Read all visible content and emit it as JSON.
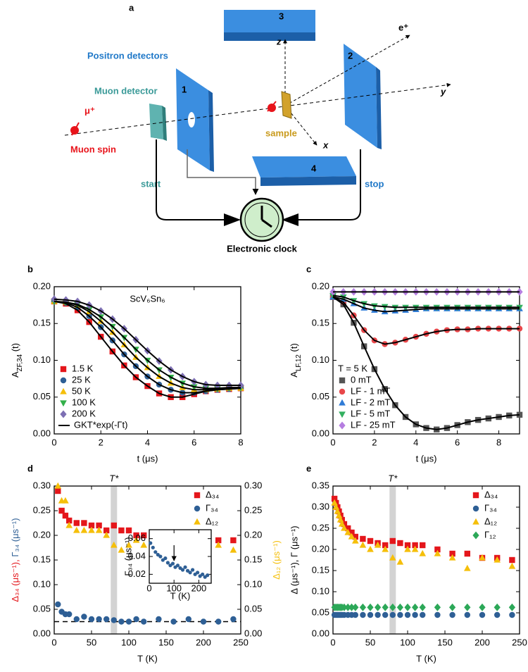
{
  "diagram": {
    "panel_label": "a",
    "positron_detectors": "Positron detectors",
    "muon_detector": "Muon detector",
    "muon": "μ⁺",
    "muon_spin": "Muon spin",
    "start": "start",
    "stop": "stop",
    "sample": "sample",
    "clock": "Electronic clock",
    "detector_numbers": [
      "1",
      "2",
      "3",
      "4"
    ],
    "axes": [
      "z",
      "x",
      "y"
    ],
    "positron": "e⁺"
  },
  "chart_data": [
    {
      "type": "scatter",
      "panel_label": "b",
      "annotation": "ScV₆Sn₆",
      "xlabel": "t (μs)",
      "ylabel": [
        "A",
        {
          "text": "ZF,34",
          "sub": true
        },
        " (t)"
      ],
      "xlim": [
        0,
        8
      ],
      "xticks": [
        0,
        2,
        4,
        6,
        8
      ],
      "ylim": [
        0,
        0.2
      ],
      "yticks": [
        {
          "value": 0,
          "label": "0.00"
        },
        {
          "value": 0.05,
          "label": "0.05"
        },
        {
          "value": 0.1,
          "label": "0.10"
        },
        {
          "value": 0.15,
          "label": "0.15"
        },
        {
          "value": 0.2,
          "label": "0.20"
        }
      ],
      "legend": "lower left",
      "fit_label": "GKT*exp(-Γt)",
      "fit_color": "#000000",
      "x": [
        0,
        0.5,
        1,
        1.5,
        2,
        2.5,
        3,
        3.5,
        4,
        4.5,
        5,
        5.5,
        6,
        6.5,
        7,
        7.5,
        8
      ],
      "series": [
        {
          "name": "1.5 K",
          "color": "#e4161b",
          "marker": "square",
          "values": [
            0.18,
            0.177,
            0.168,
            0.152,
            0.132,
            0.112,
            0.093,
            0.077,
            0.065,
            0.055,
            0.05,
            0.05,
            0.054,
            0.058,
            0.06,
            0.061,
            0.062
          ]
        },
        {
          "name": "25 K",
          "color": "#2e5f95",
          "marker": "circle",
          "values": [
            0.18,
            0.178,
            0.172,
            0.16,
            0.145,
            0.127,
            0.108,
            0.092,
            0.078,
            0.067,
            0.06,
            0.056,
            0.056,
            0.058,
            0.06,
            0.061,
            0.062
          ]
        },
        {
          "name": "50 K",
          "color": "#f5bf0a",
          "marker": "triangle-up",
          "values": [
            0.18,
            0.179,
            0.175,
            0.166,
            0.153,
            0.138,
            0.121,
            0.104,
            0.09,
            0.078,
            0.069,
            0.063,
            0.06,
            0.06,
            0.061,
            0.062,
            0.062
          ]
        },
        {
          "name": "100 K",
          "color": "#33b04a",
          "marker": "triangle-down",
          "values": [
            0.18,
            0.179,
            0.176,
            0.169,
            0.159,
            0.146,
            0.131,
            0.115,
            0.1,
            0.087,
            0.077,
            0.069,
            0.064,
            0.062,
            0.062,
            0.063,
            0.063
          ]
        },
        {
          "name": "200 K",
          "color": "#7d6fb3",
          "marker": "diamond",
          "values": [
            0.183,
            0.182,
            0.18,
            0.175,
            0.167,
            0.156,
            0.143,
            0.128,
            0.113,
            0.099,
            0.087,
            0.078,
            0.071,
            0.067,
            0.066,
            0.066,
            0.066
          ]
        }
      ]
    },
    {
      "type": "scatter",
      "panel_label": "c",
      "legend_title": "T = 5 K",
      "xlabel": "t (μs)",
      "ylabel": [
        "A",
        {
          "text": "LF,12",
          "sub": true
        },
        " (t)"
      ],
      "xlim": [
        0,
        9
      ],
      "xticks": [
        0,
        2,
        4,
        6,
        8
      ],
      "ylim": [
        0,
        0.2
      ],
      "yticks": [
        {
          "value": 0,
          "label": "0.00"
        },
        {
          "value": 0.05,
          "label": "0.05"
        },
        {
          "value": 0.1,
          "label": "0.10"
        },
        {
          "value": 0.15,
          "label": "0.15"
        },
        {
          "value": 0.2,
          "label": "0.20"
        }
      ],
      "legend": "lower left",
      "fit_color": "#000000",
      "x": [
        0,
        0.5,
        1,
        1.5,
        2,
        2.5,
        3,
        3.5,
        4,
        4.5,
        5,
        5.5,
        6,
        6.5,
        7,
        7.5,
        8,
        8.5,
        9
      ],
      "series": [
        {
          "name": "0 mT",
          "color": "#555555",
          "marker": "square",
          "values": [
            0.186,
            0.176,
            0.151,
            0.119,
            0.088,
            0.061,
            0.039,
            0.023,
            0.013,
            0.008,
            0.006,
            0.008,
            0.012,
            0.016,
            0.019,
            0.021,
            0.023,
            0.025,
            0.026
          ]
        },
        {
          "name": "LF - 1 mT",
          "color": "#e8474a",
          "marker": "circle",
          "values": [
            0.186,
            0.179,
            0.161,
            0.141,
            0.127,
            0.122,
            0.124,
            0.128,
            0.132,
            0.136,
            0.139,
            0.141,
            0.142,
            0.142,
            0.143,
            0.143,
            0.143,
            0.143,
            0.143
          ]
        },
        {
          "name": "LF - 2 mT",
          "color": "#2f7bd6",
          "marker": "triangle-up",
          "values": [
            0.186,
            0.183,
            0.177,
            0.171,
            0.168,
            0.166,
            0.167,
            0.168,
            0.169,
            0.17,
            0.17,
            0.17,
            0.17,
            0.17,
            0.17,
            0.17,
            0.17,
            0.17,
            0.17
          ]
        },
        {
          "name": "LF - 5 mT",
          "color": "#33b060",
          "marker": "triangle-down",
          "values": [
            0.188,
            0.186,
            0.181,
            0.177,
            0.174,
            0.173,
            0.172,
            0.172,
            0.172,
            0.172,
            0.172,
            0.172,
            0.172,
            0.172,
            0.172,
            0.172,
            0.172,
            0.172,
            0.172
          ]
        },
        {
          "name": "LF - 25 mT",
          "color": "#b57de0",
          "marker": "diamond",
          "values": [
            0.193,
            0.193,
            0.193,
            0.193,
            0.193,
            0.193,
            0.193,
            0.193,
            0.193,
            0.193,
            0.193,
            0.193,
            0.193,
            0.193,
            0.193,
            0.193,
            0.193,
            0.193,
            0.193
          ]
        }
      ]
    },
    {
      "type": "scatter",
      "panel_label": "d",
      "xlabel": "T (K)",
      "ylabel": [
        {
          "text": "Δ₃₄ (μs⁻¹), ",
          "color": "#e4161b"
        },
        {
          "text": "Γ₃₄ (μs⁻¹)",
          "color": "#2e5f95"
        }
      ],
      "y2label": [
        {
          "text": "Δ₁₂ (μs⁻¹)",
          "color": "#f5bf0a"
        }
      ],
      "xlim": [
        0,
        250
      ],
      "xticks": [
        0,
        50,
        100,
        150,
        200,
        250
      ],
      "ylim": [
        0,
        0.3
      ],
      "y2lim": [
        0,
        0.3
      ],
      "yticks": [
        {
          "value": 0,
          "label": "0.00"
        },
        {
          "value": 0.05,
          "label": "0.05"
        },
        {
          "value": 0.1,
          "label": "0.10"
        },
        {
          "value": 0.15,
          "label": "0.15"
        },
        {
          "value": 0.2,
          "label": "0.20"
        },
        {
          "value": 0.25,
          "label": "0.25"
        },
        {
          "value": 0.3,
          "label": "0.30"
        }
      ],
      "y2ticks": [
        {
          "value": 0,
          "label": "0.00"
        },
        {
          "value": 0.05,
          "label": "0.05"
        },
        {
          "value": 0.1,
          "label": "0.10"
        },
        {
          "value": 0.15,
          "label": "0.15"
        },
        {
          "value": 0.2,
          "label": "0.20"
        },
        {
          "value": 0.25,
          "label": "0.25"
        },
        {
          "value": 0.3,
          "label": "0.30"
        }
      ],
      "highlight_x": 80,
      "highlight_label": "T*",
      "reference_line": 0.025,
      "legend": "upper right",
      "x": [
        5,
        10,
        15,
        20,
        30,
        40,
        50,
        60,
        70,
        80,
        90,
        100,
        110,
        120,
        140,
        160,
        180,
        200,
        220,
        240
      ],
      "series": [
        {
          "name": "Δ₃₄",
          "color": "#e4161b",
          "marker": "square",
          "values": [
            0.29,
            0.25,
            0.24,
            0.23,
            0.225,
            0.225,
            0.22,
            0.22,
            0.21,
            0.22,
            0.21,
            0.21,
            0.2,
            0.2,
            0.19,
            0.19,
            0.19,
            0.19,
            0.19,
            0.19
          ]
        },
        {
          "name": "Γ₃₄",
          "color": "#2e5f95",
          "marker": "circle",
          "values": [
            0.06,
            0.045,
            0.04,
            0.04,
            0.03,
            0.035,
            0.03,
            0.03,
            0.03,
            0.028,
            0.025,
            0.025,
            0.03,
            0.025,
            0.03,
            0.025,
            0.03,
            0.025,
            0.025,
            0.03
          ]
        },
        {
          "name": "Δ₁₂",
          "color": "#f5bf0a",
          "marker": "triangle-up",
          "axis": "y2",
          "values": [
            0.3,
            0.27,
            0.27,
            0.22,
            0.21,
            0.21,
            0.21,
            0.21,
            0.2,
            0.18,
            0.17,
            0.18,
            0.19,
            0.18,
            0.2,
            0.18,
            0.19,
            0.19,
            0.18,
            0.17
          ]
        }
      ]
    },
    {
      "type": "scatter",
      "xlabel": "T (K)",
      "ylabel": "Γ₃₄ (μs⁻¹)",
      "xlim": [
        0,
        250
      ],
      "xticks": [
        0,
        100,
        200
      ],
      "ylim": [
        0.01,
        0.07
      ],
      "yticks": [
        {
          "value": 0.02,
          "label": "0.02"
        },
        {
          "value": 0.04,
          "label": "0.04"
        },
        {
          "value": 0.06,
          "label": "0.06"
        }
      ],
      "arrow_x": 100,
      "x": [
        5,
        15,
        25,
        35,
        45,
        55,
        65,
        75,
        85,
        95,
        105,
        115,
        125,
        135,
        145,
        155,
        165,
        175,
        185,
        195,
        205,
        215,
        225,
        235
      ],
      "series": [
        {
          "color": "#2e5f95",
          "marker": "circle",
          "values": [
            0.055,
            0.05,
            0.045,
            0.042,
            0.04,
            0.036,
            0.038,
            0.033,
            0.03,
            0.032,
            0.028,
            0.03,
            0.027,
            0.025,
            0.028,
            0.024,
            0.022,
            0.025,
            0.02,
            0.022,
            0.018,
            0.02,
            0.017,
            0.019
          ]
        }
      ]
    },
    {
      "type": "scatter",
      "panel_label": "e",
      "xlabel": "T (K)",
      "ylabel": "Δ (μs⁻¹), Γ (μs⁻¹)",
      "xlim": [
        0,
        250
      ],
      "xticks": [
        0,
        50,
        100,
        150,
        200,
        250
      ],
      "ylim": [
        0,
        0.35
      ],
      "yticks": [
        {
          "value": 0,
          "label": "0.00"
        },
        {
          "value": 0.05,
          "label": "0.05"
        },
        {
          "value": 0.1,
          "label": "0.10"
        },
        {
          "value": 0.15,
          "label": "0.15"
        },
        {
          "value": 0.2,
          "label": "0.20"
        },
        {
          "value": 0.25,
          "label": "0.25"
        },
        {
          "value": 0.3,
          "label": "0.30"
        },
        {
          "value": 0.35,
          "label": "0.35"
        }
      ],
      "highlight_x": 80,
      "highlight_label": "T*",
      "legend": "upper right",
      "x": [
        2,
        4,
        6,
        8,
        10,
        12,
        15,
        20,
        25,
        30,
        40,
        50,
        60,
        70,
        80,
        90,
        100,
        110,
        120,
        140,
        160,
        180,
        200,
        220,
        240
      ],
      "series": [
        {
          "name": "Δ₃₄",
          "color": "#e4161b",
          "marker": "square",
          "values": [
            0.32,
            0.31,
            0.3,
            0.29,
            0.28,
            0.27,
            0.26,
            0.25,
            0.24,
            0.23,
            0.225,
            0.22,
            0.215,
            0.21,
            0.22,
            0.215,
            0.21,
            0.21,
            0.21,
            0.2,
            0.19,
            0.19,
            0.18,
            0.18,
            0.175
          ]
        },
        {
          "name": "Γ₃₄",
          "color": "#2e5f95",
          "marker": "circle",
          "values": [
            0.045,
            0.045,
            0.045,
            0.045,
            0.045,
            0.045,
            0.045,
            0.045,
            0.045,
            0.045,
            0.045,
            0.045,
            0.045,
            0.045,
            0.045,
            0.045,
            0.045,
            0.045,
            0.045,
            0.045,
            0.045,
            0.045,
            0.045,
            0.045,
            0.045
          ]
        },
        {
          "name": "Δ₁₂",
          "color": "#f5bf0a",
          "marker": "triangle-up",
          "values": [
            0.31,
            0.3,
            0.29,
            0.28,
            0.27,
            0.26,
            0.25,
            0.24,
            0.23,
            0.22,
            0.21,
            0.2,
            0.21,
            0.2,
            0.18,
            0.17,
            0.2,
            0.2,
            0.19,
            0.19,
            0.18,
            0.155,
            0.18,
            0.175,
            0.16
          ]
        },
        {
          "name": "Γ₁₂",
          "color": "#2ca858",
          "marker": "diamond",
          "values": [
            0.063,
            0.063,
            0.063,
            0.063,
            0.063,
            0.063,
            0.063,
            0.063,
            0.063,
            0.063,
            0.063,
            0.063,
            0.063,
            0.063,
            0.063,
            0.063,
            0.063,
            0.063,
            0.063,
            0.063,
            0.063,
            0.063,
            0.063,
            0.063,
            0.063
          ]
        }
      ]
    }
  ]
}
